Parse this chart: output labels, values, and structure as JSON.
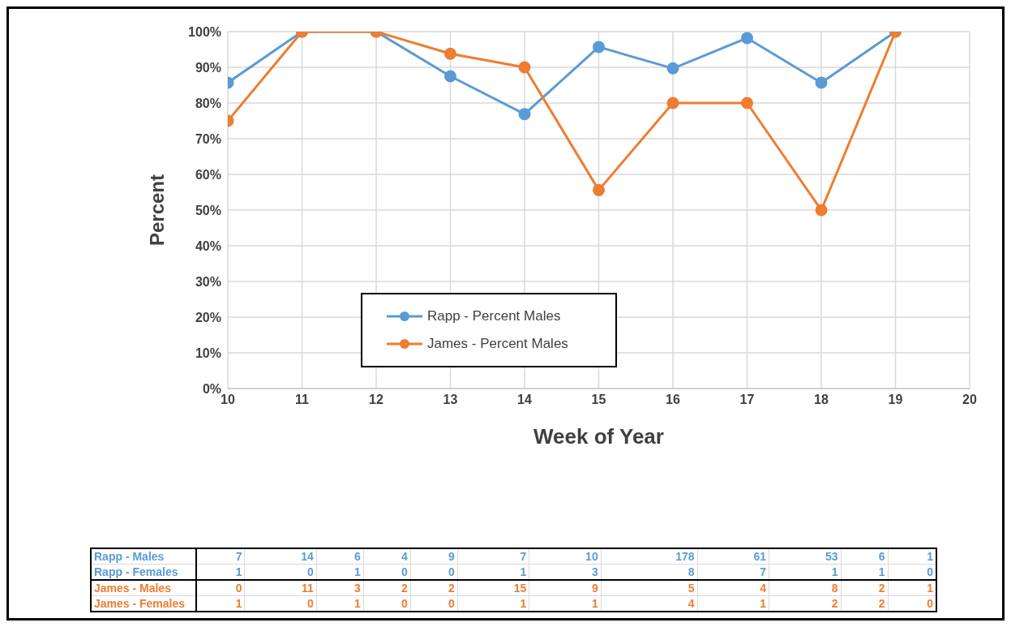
{
  "chart_data": {
    "type": "line",
    "xlabel": "Week of Year",
    "ylabel": "Percent",
    "x": [
      10,
      11,
      12,
      13,
      14,
      15,
      16,
      17,
      18,
      19
    ],
    "series": [
      {
        "name": "Rapp - Percent Males",
        "color": "#5b9bd5",
        "values": [
          85.7,
          100,
          100,
          87.5,
          76.9,
          95.7,
          89.7,
          98.2,
          85.7,
          100
        ]
      },
      {
        "name": "James - Percent Males",
        "color": "#ed7d31",
        "values": [
          75,
          100,
          100,
          93.8,
          90,
          55.6,
          80,
          80,
          50,
          100
        ]
      }
    ],
    "xlim": [
      10,
      20
    ],
    "xticks": [
      10,
      11,
      12,
      13,
      14,
      15,
      16,
      17,
      18,
      19,
      20
    ],
    "ylim": [
      0,
      100
    ],
    "yticks": [
      {
        "value": 0,
        "label": "0%"
      },
      {
        "value": 10,
        "label": "10%"
      },
      {
        "value": 20,
        "label": "20%"
      },
      {
        "value": 30,
        "label": "30%"
      },
      {
        "value": 40,
        "label": "40%"
      },
      {
        "value": 50,
        "label": "50%"
      },
      {
        "value": 60,
        "label": "60%"
      },
      {
        "value": 70,
        "label": "70%"
      },
      {
        "value": 80,
        "label": "80%"
      },
      {
        "value": 90,
        "label": "90%"
      },
      {
        "value": 100,
        "label": "100%"
      }
    ],
    "grid": true,
    "legend": "center",
    "marker": "circle",
    "line_style": "solid",
    "annotations": [
      "Rapp - Males",
      "7",
      "14",
      "6",
      "4",
      "9",
      "7",
      "10",
      "178",
      "61",
      "53",
      "6",
      "1",
      "Rapp - Females",
      "1",
      "0",
      "1",
      "0",
      "0",
      "1",
      "3",
      "8",
      "7",
      "1",
      "1",
      "0",
      "James - Males",
      "0",
      "11",
      "3",
      "2",
      "2",
      "15",
      "9",
      "5",
      "4",
      "8",
      "2",
      "1",
      "James - Females",
      "1",
      "0",
      "1",
      "0",
      "0",
      "1",
      "1",
      "4",
      "1",
      "2",
      "2",
      "0"
    ]
  }
}
